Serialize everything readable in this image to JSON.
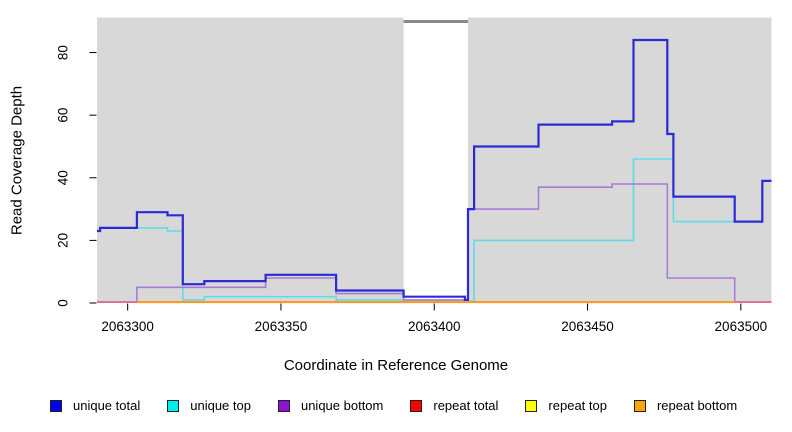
{
  "figure": {
    "background_color": "#ffffff"
  },
  "chart_data": {
    "type": "line",
    "line_style": "step",
    "title": "",
    "xlabel": "Coordinate in Reference Genome",
    "ylabel": "Read Coverage Depth",
    "xlim": [
      2063290,
      2063510
    ],
    "ylim": [
      0,
      91.2
    ],
    "x_ticks": [
      2063300,
      2063350,
      2063400,
      2063450,
      2063500
    ],
    "x_tick_labels": [
      "2063300",
      "2063350",
      "2063400",
      "2063450",
      "2063500"
    ],
    "y_ticks": [
      0,
      20,
      40,
      60,
      80
    ],
    "y_tick_labels": [
      "0",
      "20",
      "40",
      "60",
      "80"
    ],
    "grid": false,
    "plot_background": "#d8d8d8",
    "masked_region": {
      "x_start": 2063390,
      "x_end": 2063411,
      "fill": "#ffffff",
      "cap_color": "#8a8a8a"
    },
    "legend_position": "bottom-horizontal",
    "series": [
      {
        "name": "unique total",
        "legend_color": "#0000ee",
        "line_color": "#2b2bd5",
        "line_width": 2.2,
        "steps": [
          [
            2063290,
            23
          ],
          [
            2063291,
            24
          ],
          [
            2063303,
            29
          ],
          [
            2063313,
            28
          ],
          [
            2063318,
            6
          ],
          [
            2063325,
            7
          ],
          [
            2063345,
            9
          ],
          [
            2063368,
            4
          ],
          [
            2063390,
            2
          ],
          [
            2063410,
            1
          ],
          [
            2063411,
            30
          ],
          [
            2063413,
            50
          ],
          [
            2063434,
            57
          ],
          [
            2063458,
            58
          ],
          [
            2063465,
            84
          ],
          [
            2063476,
            54
          ],
          [
            2063478,
            34
          ],
          [
            2063498,
            26
          ],
          [
            2063507,
            39
          ]
        ],
        "end": 2063510
      },
      {
        "name": "unique top",
        "legend_color": "#00eeee",
        "line_color": "#5cdde8",
        "line_width": 1.6,
        "steps": [
          [
            2063290,
            23
          ],
          [
            2063291,
            24
          ],
          [
            2063313,
            23
          ],
          [
            2063318,
            1
          ],
          [
            2063325,
            2
          ],
          [
            2063368,
            1
          ],
          [
            2063390,
            0.5
          ],
          [
            2063413,
            20
          ],
          [
            2063465,
            46
          ],
          [
            2063478,
            26
          ],
          [
            2063507,
            39
          ]
        ],
        "end": 2063510
      },
      {
        "name": "unique bottom",
        "legend_color": "#9013d3",
        "line_color": "#a87cd6",
        "line_width": 1.6,
        "steps": [
          [
            2063290,
            0.3
          ],
          [
            2063303,
            5
          ],
          [
            2063345,
            8
          ],
          [
            2063368,
            3
          ],
          [
            2063390,
            1
          ],
          [
            2063411,
            30
          ],
          [
            2063434,
            37
          ],
          [
            2063458,
            38
          ],
          [
            2063476,
            8
          ],
          [
            2063498,
            0.3
          ]
        ],
        "end": 2063510
      },
      {
        "name": "repeat total",
        "legend_color": "#ff0000",
        "line_color": "#e0668f",
        "line_width": 1.6,
        "steps": [
          [
            2063290,
            0.3
          ]
        ],
        "end": 2063510
      },
      {
        "name": "repeat top",
        "legend_color": "#ffff00",
        "line_color": "#ffff00",
        "line_width": 1.6,
        "steps": [],
        "end": 2063510
      },
      {
        "name": "repeat bottom",
        "legend_color": "#ffa500",
        "line_color": "#ff9a1f",
        "line_width": 2,
        "steps": [
          [
            2063303,
            0.3
          ]
        ],
        "end": 2063498
      }
    ]
  }
}
